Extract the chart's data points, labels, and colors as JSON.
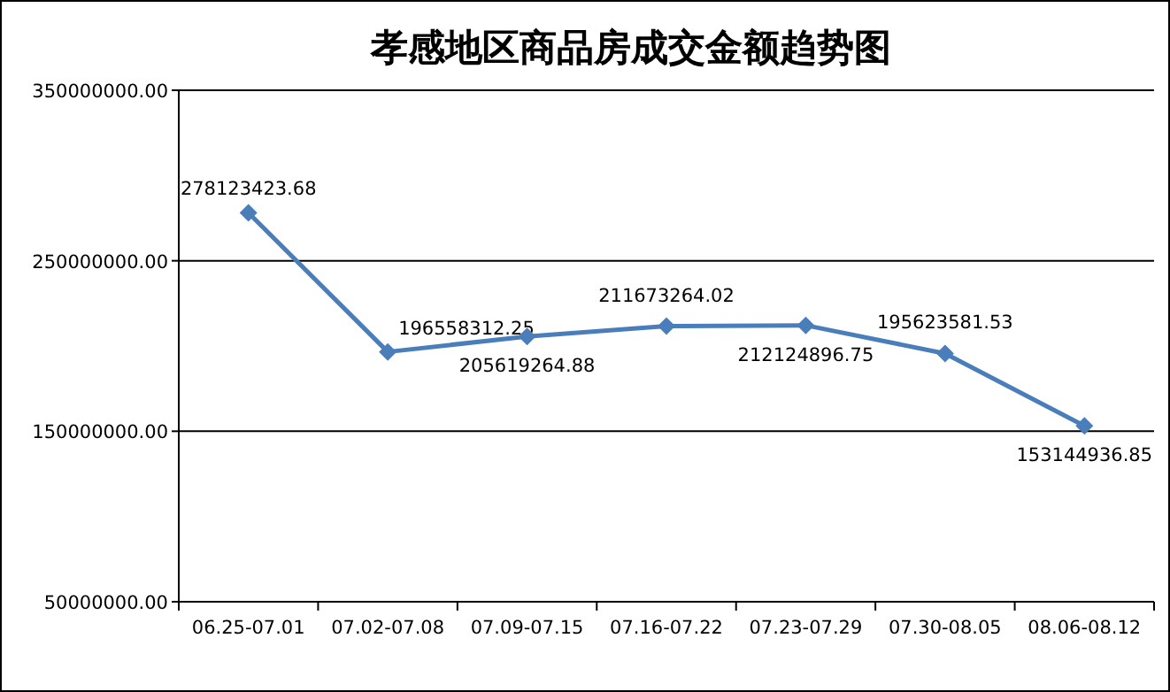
{
  "chart_data": {
    "type": "line",
    "title": "孝感地区商品房成交金额趋势图",
    "categories": [
      "06.25-07.01",
      "07.02-07.08",
      "07.09-07.15",
      "07.16-07.22",
      "07.23-07.29",
      "07.30-08.05",
      "08.06-08.12"
    ],
    "series": [
      {
        "color": "#4a7ebb",
        "values": [
          278123423.68,
          196558312.25,
          205619264.88,
          211673264.02,
          212124896.75,
          195623581.53,
          153144936.85
        ]
      }
    ],
    "ylim": [
      50000000,
      350000000
    ],
    "yticks": [
      {
        "value": 50000000,
        "label": "50000000.00"
      },
      {
        "value": 150000000,
        "label": "150000000.00"
      },
      {
        "value": 250000000,
        "label": "250000000.00"
      },
      {
        "value": 350000000,
        "label": "350000000.00"
      }
    ],
    "grid": "y",
    "marker": "diamond",
    "line_style": "solid",
    "data_labels": true
  }
}
